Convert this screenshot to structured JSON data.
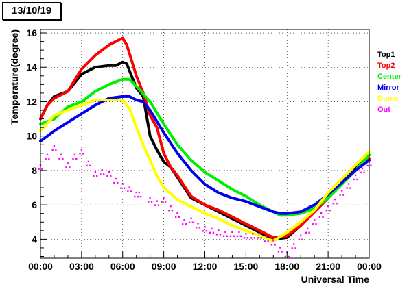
{
  "chart_data": {
    "type": "line",
    "title": "13/10/19",
    "xlabel": "Universal Time",
    "ylabel": "Temperature(degree)",
    "x_tick_labels": [
      "00:00",
      "03:00",
      "06:00",
      "09:00",
      "12:00",
      "15:00",
      "18:00",
      "21:00",
      "00:00"
    ],
    "x_ticks_hours": [
      0,
      3,
      6,
      9,
      12,
      15,
      18,
      21,
      24
    ],
    "y_ticks": [
      4,
      6,
      8,
      10,
      12,
      14,
      16
    ],
    "xlim": [
      0,
      24
    ],
    "ylim": [
      2.9,
      16.2
    ],
    "grid": true,
    "legend_position": "right",
    "series": [
      {
        "name": "Top1",
        "color": "#000000",
        "style": "line",
        "x": [
          0,
          0.5,
          1,
          2,
          3,
          4,
          5,
          5.5,
          6,
          6.3,
          6.5,
          7,
          7.5,
          8,
          8.5,
          9,
          9.5,
          10,
          11,
          12,
          13,
          14,
          15,
          16,
          17,
          18,
          19,
          20,
          21,
          22,
          23,
          24
        ],
        "y": [
          11,
          11.8,
          12.3,
          12.6,
          13.6,
          14,
          14.1,
          14.1,
          14.3,
          14.2,
          13.8,
          12.8,
          12.3,
          10,
          9.2,
          8.5,
          8.2,
          7.6,
          6.4,
          6,
          5.6,
          5.2,
          4.8,
          4.4,
          4,
          4.1,
          4.8,
          5.6,
          6.4,
          7.3,
          8.1,
          8.9
        ]
      },
      {
        "name": "Top2",
        "color": "#ff0000",
        "style": "line",
        "x": [
          0,
          0.5,
          1,
          2,
          3,
          4,
          5,
          5.5,
          6,
          6.3,
          6.5,
          7,
          7.5,
          8,
          8.5,
          9,
          9.5,
          10,
          11,
          12,
          13,
          14,
          15,
          16,
          17,
          18,
          19,
          20,
          21,
          22,
          23,
          24
        ],
        "y": [
          11,
          11.8,
          12.2,
          12.6,
          13.9,
          14.7,
          15.3,
          15.5,
          15.7,
          15.3,
          14.8,
          13.5,
          12.5,
          11.2,
          10.5,
          9,
          8.2,
          7.7,
          6.5,
          6,
          5.7,
          5.3,
          4.9,
          4.5,
          4.1,
          4.2,
          4.8,
          5.6,
          6.4,
          7.2,
          8,
          8.7
        ]
      },
      {
        "name": "Center",
        "color": "#00ee00",
        "style": "line",
        "x": [
          0,
          1,
          2,
          3,
          4,
          5,
          6,
          6.5,
          7,
          8,
          9,
          10,
          11,
          12,
          13,
          14,
          15,
          16,
          17,
          17.5,
          18,
          19,
          20,
          21,
          22,
          23,
          24
        ],
        "y": [
          10.7,
          11,
          11.7,
          12,
          12.6,
          13,
          13.3,
          13.3,
          12.9,
          12,
          10.7,
          9.5,
          8.6,
          7.9,
          7.4,
          6.9,
          6.5,
          6,
          5.6,
          5.4,
          5.4,
          5.5,
          5.8,
          6.4,
          7.2,
          8,
          8.9
        ]
      },
      {
        "name": "Mirror",
        "color": "#0000ee",
        "style": "line",
        "x": [
          0,
          1,
          2,
          3,
          4,
          5,
          6,
          6.5,
          7,
          7.5,
          8,
          9,
          10,
          11,
          12,
          13,
          14,
          15,
          16,
          17,
          17.5,
          18,
          19,
          20,
          21,
          22,
          23,
          24
        ],
        "y": [
          9.7,
          10.3,
          10.8,
          11.3,
          11.8,
          12.2,
          12.3,
          12.3,
          12.1,
          12,
          11.5,
          10.2,
          9,
          8,
          7.2,
          6.7,
          6.4,
          6.2,
          5.9,
          5.6,
          5.5,
          5.5,
          5.6,
          6,
          6.6,
          7.3,
          8,
          8.6
        ]
      },
      {
        "name": "Dome",
        "color": "#ffff00",
        "style": "line",
        "x": [
          0,
          1,
          2,
          3,
          4,
          5,
          5.5,
          6,
          6.5,
          7,
          7.5,
          8,
          8.5,
          9,
          10,
          11,
          12,
          13,
          14,
          15,
          16,
          17,
          18,
          19,
          20,
          21,
          22,
          23,
          24
        ],
        "y": [
          10.3,
          11.2,
          11.5,
          11.8,
          12.1,
          12.1,
          12.1,
          12.1,
          11.6,
          10.5,
          9.5,
          8.6,
          7.7,
          7,
          6.3,
          5.9,
          5.5,
          5.2,
          4.8,
          4.5,
          4.2,
          3.9,
          4.4,
          5,
          5.7,
          6.7,
          7.5,
          8.3,
          9.1
        ]
      },
      {
        "name": "Out",
        "color": "#ff00ff",
        "style": "points",
        "x": [
          0,
          0.5,
          1,
          1.5,
          2,
          2.5,
          3,
          3.5,
          4,
          4.5,
          5,
          5.5,
          6,
          6.5,
          7,
          7.2,
          8,
          8.5,
          9,
          9.5,
          10,
          10.5,
          11,
          11.5,
          12,
          12.5,
          13,
          13.5,
          14,
          14.5,
          15,
          15.5,
          16,
          16.5,
          17,
          17.5,
          18,
          18.5,
          19,
          19.5,
          20,
          20.5,
          21,
          21.5,
          22,
          22.5,
          23,
          23.5,
          24
        ],
        "y": [
          8.2,
          8.8,
          9.3,
          8.8,
          8.3,
          8.8,
          9.1,
          8.4,
          7.8,
          7.9,
          7.8,
          7.4,
          7.1,
          6.9,
          6.6,
          6.6,
          6.3,
          6.1,
          6.3,
          5.8,
          5.4,
          5,
          5.1,
          4.8,
          4.6,
          4.5,
          4.4,
          4.3,
          4.3,
          4.3,
          4.2,
          4.2,
          4.2,
          4,
          3.8,
          3.4,
          3.1,
          3.6,
          4.1,
          4.5,
          5,
          5.4,
          5.8,
          6.2,
          6.7,
          7.1,
          7.6,
          8,
          8.4
        ]
      }
    ]
  }
}
